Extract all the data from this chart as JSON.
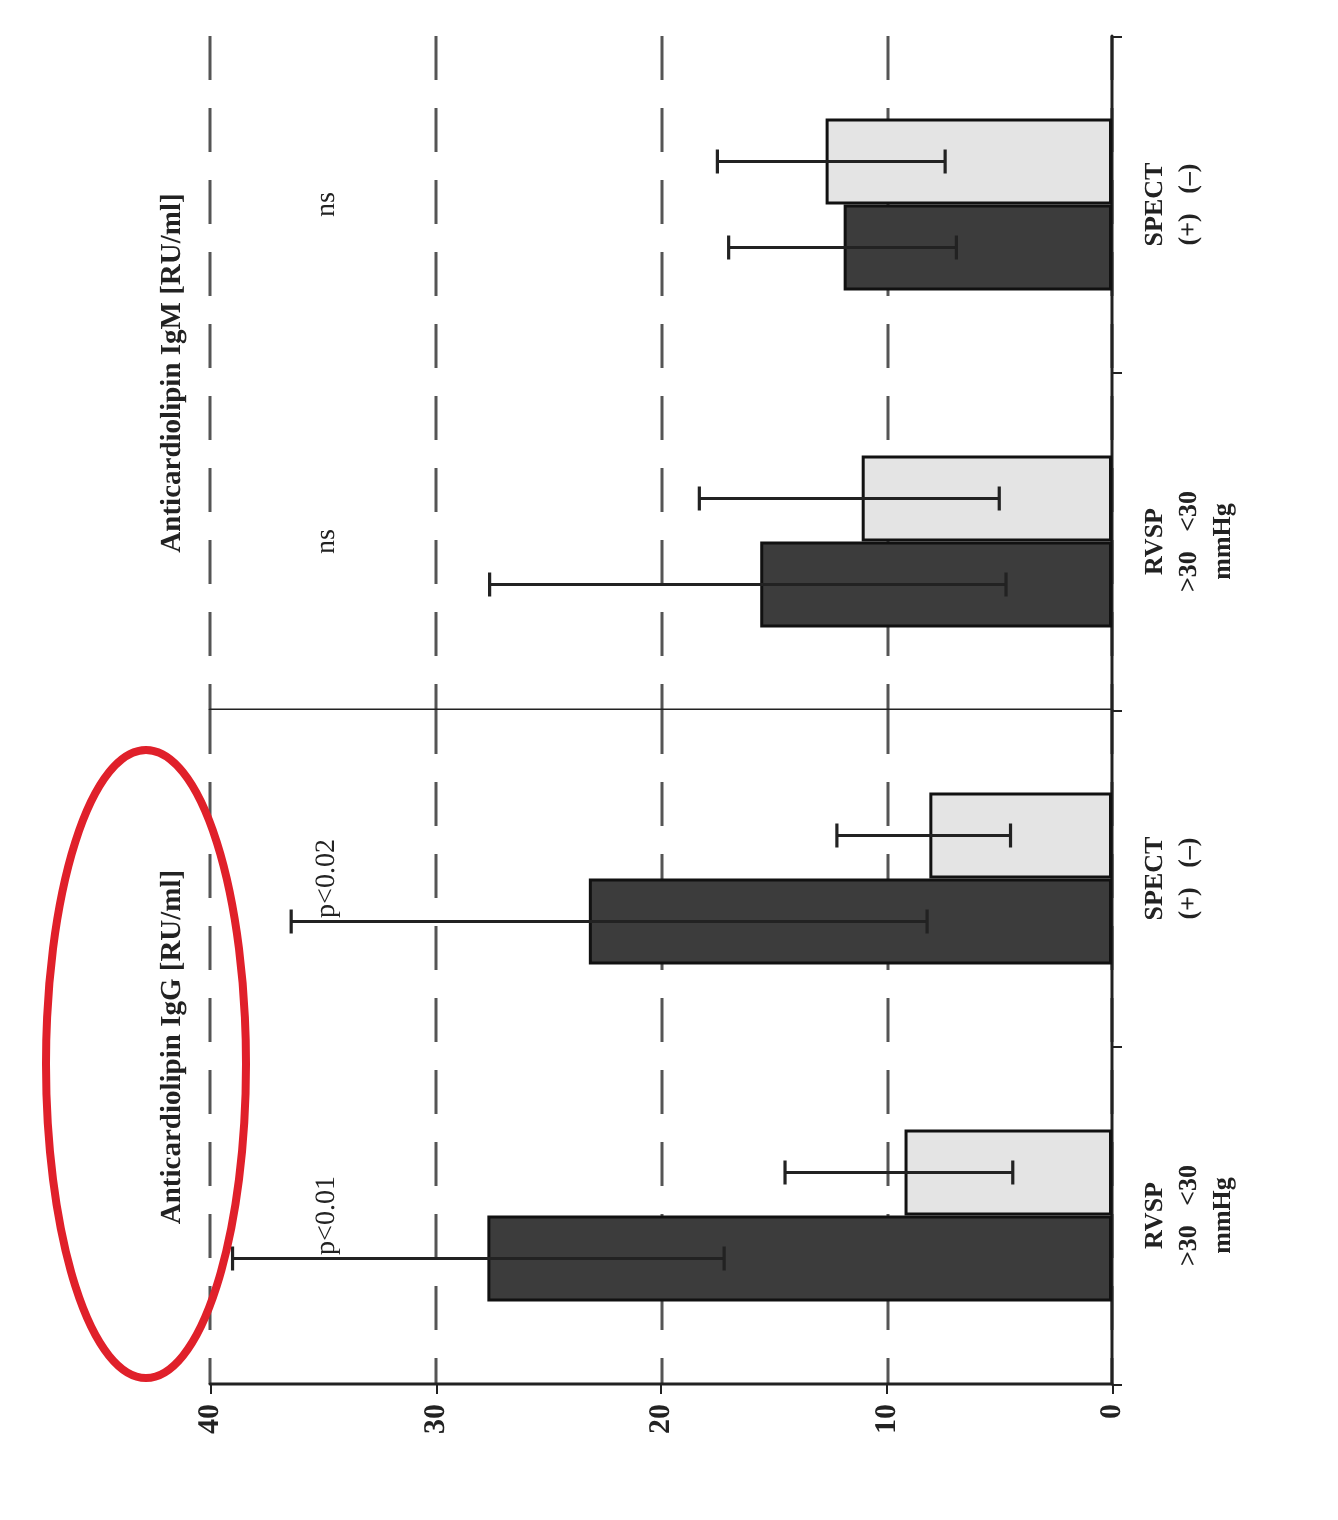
{
  "chart_data": [
    {
      "type": "bar",
      "orientation": "horizontal",
      "title": "Anticardiolipin IgM [RU/ml]",
      "categories": [
        "SPECT\n(+)   (–)",
        "RVSP\n>30   <30\nmmHg"
      ],
      "series": [
        {
          "color": "#e4e4e4",
          "values": [
            12.7,
            11.1
          ],
          "errors": [
            [
              7.4,
              17.5
            ],
            [
              5.0,
              18.3
            ]
          ]
        },
        {
          "color": "#3c3c3c",
          "values": [
            11.9,
            15.6
          ],
          "errors": [
            [
              6.9,
              17.0
            ],
            [
              4.7,
              27.6
            ]
          ]
        }
      ],
      "annotations": [
        "ns",
        "ns"
      ],
      "xlim": [
        40,
        0
      ],
      "xticks": [
        40,
        30,
        20,
        10,
        0
      ],
      "grid": "x",
      "tick_labels": "y"
    },
    {
      "type": "bar",
      "orientation": "horizontal",
      "title": "Anticardiolipin IgG [RU/ml]",
      "categories": [
        "SPECT\n(+)   (–)",
        "RVSP\n>30   <30\nmmHg"
      ],
      "series": [
        {
          "color": "#e4e4e4",
          "values": [
            8.1,
            9.2
          ],
          "errors": [
            [
              4.5,
              12.2
            ],
            [
              4.4,
              14.5
            ]
          ]
        },
        {
          "color": "#3c3c3c",
          "values": [
            23.2,
            27.7
          ],
          "errors": [
            [
              8.2,
              36.4
            ],
            [
              17.2,
              39.0
            ]
          ]
        }
      ],
      "annotations": [
        "p<0.02",
        "p<0.01"
      ],
      "xlim": [
        40,
        0
      ],
      "xticks": [
        40,
        30,
        20,
        10,
        0
      ],
      "grid": "x"
    }
  ]
}
